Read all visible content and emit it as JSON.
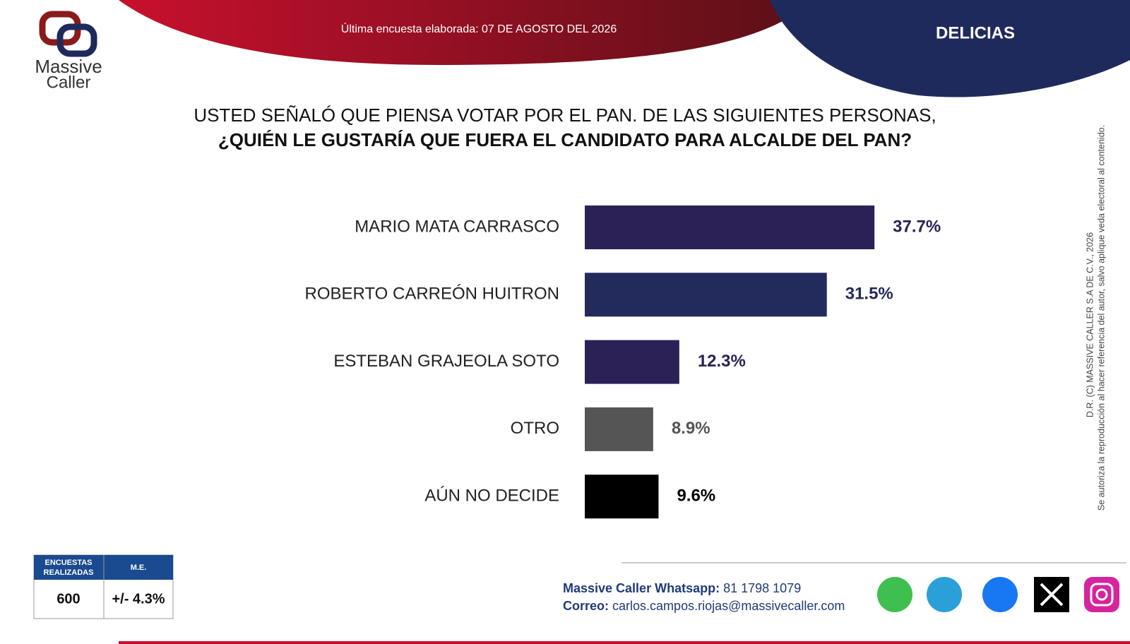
{
  "header": {
    "survey_date": "Última encuesta elaborada: 07 DE AGOSTO DEL 2026",
    "location": "DELICIAS",
    "logo_line1": "Massive",
    "logo_line2": "Caller"
  },
  "chart_data": {
    "type": "bar",
    "orientation": "horizontal",
    "title": "USTED SEÑALÓ QUE PIENSA VOTAR POR EL PAN. DE LAS SIGUIENTES PERSONAS,",
    "subtitle": "¿QUIÉN LE GUSTARÍA QUE FUERA EL CANDIDATO PARA ALCALDE DEL PAN?",
    "categories": [
      "MARIO MATA CARRASCO",
      "ROBERTO CARREÓN HUITRON",
      "ESTEBAN GRAJEOLA SOTO",
      "OTRO",
      "AÚN NO DECIDE"
    ],
    "values": [
      37.7,
      31.5,
      12.3,
      8.9,
      9.6
    ],
    "value_labels": [
      "37.7%",
      "31.5%",
      "12.3%",
      "8.9%",
      "9.6%"
    ],
    "colors": [
      "#2b2157",
      "#232a5c",
      "#2b2157",
      "#555555",
      "#000000"
    ]
  },
  "side_note": {
    "line1": "D.R. (C) MASSIVE CALLER S.A DE C.V., 2026",
    "line2": "Se autoriza la reproducción al hacer referencia del autor, salvo aplique veda electoral al contenido."
  },
  "table": {
    "headers": [
      "ENCUESTAS REALIZADAS",
      "M.E."
    ],
    "rows": [
      [
        "600",
        "+/- 4.3%"
      ]
    ]
  },
  "footer": {
    "whatsapp_label": "Massive Caller Whatsapp:",
    "whatsapp": "81 1798 1079",
    "email_label": "Correo:",
    "email": "carlos.campos.riojas@massivecaller.com"
  }
}
